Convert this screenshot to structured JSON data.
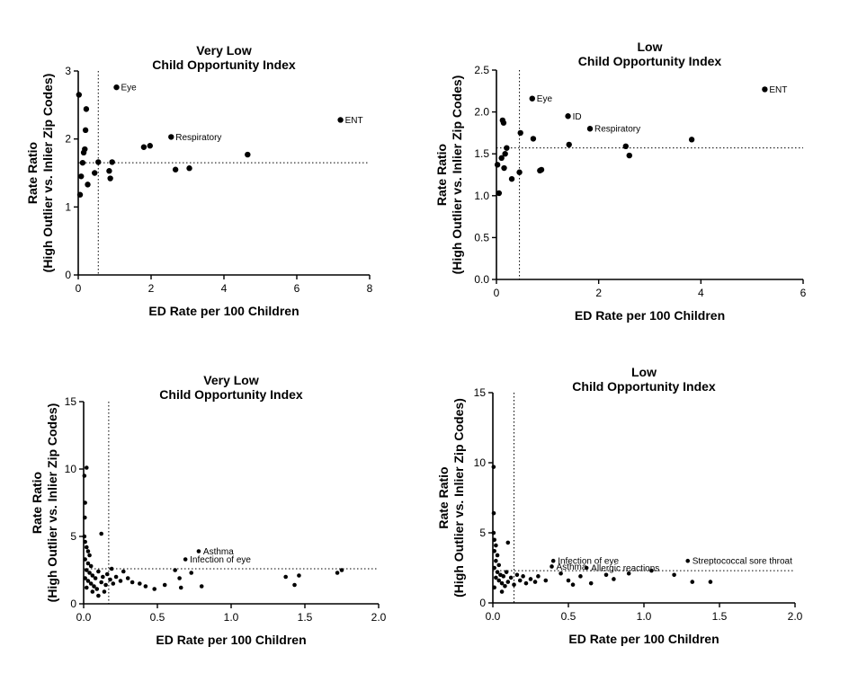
{
  "figure": {
    "background": "#ffffff",
    "point_color": "#000000"
  },
  "chart_data": [
    {
      "type": "scatter",
      "title_lines": [
        "Very Low",
        "Child Opportunity Index"
      ],
      "xlabel": "ED Rate per 100 Children",
      "ylabel_lines": [
        "Rate Ratio",
        "(High Outlier vs. Inlier Zip Codes)"
      ],
      "xlim": [
        0,
        8
      ],
      "ylim": [
        0,
        3
      ],
      "xticks": [
        0,
        2,
        4,
        6,
        8
      ],
      "yticks": [
        0,
        1,
        2,
        3
      ],
      "xtick_labels": [
        "0",
        "2",
        "4",
        "6",
        "8"
      ],
      "ytick_labels": [
        "0",
        "1",
        "2",
        "3"
      ],
      "reference_lines": {
        "x": 0.55,
        "y": 1.65
      },
      "points": [
        {
          "x": 0.02,
          "y": 2.65
        },
        {
          "x": 0.05,
          "y": 1.18
        },
        {
          "x": 0.08,
          "y": 1.45
        },
        {
          "x": 0.12,
          "y": 1.65
        },
        {
          "x": 0.15,
          "y": 1.8
        },
        {
          "x": 0.18,
          "y": 1.85
        },
        {
          "x": 0.2,
          "y": 2.13
        },
        {
          "x": 0.22,
          "y": 2.44
        },
        {
          "x": 0.26,
          "y": 1.33
        },
        {
          "x": 0.45,
          "y": 1.5
        },
        {
          "x": 0.55,
          "y": 1.66
        },
        {
          "x": 0.85,
          "y": 1.53
        },
        {
          "x": 0.88,
          "y": 1.42
        },
        {
          "x": 0.93,
          "y": 1.66
        },
        {
          "x": 1.05,
          "y": 2.76
        },
        {
          "x": 1.8,
          "y": 1.88
        },
        {
          "x": 1.97,
          "y": 1.9
        },
        {
          "x": 2.55,
          "y": 2.03
        },
        {
          "x": 2.67,
          "y": 1.55
        },
        {
          "x": 3.05,
          "y": 1.57
        },
        {
          "x": 4.65,
          "y": 1.77
        },
        {
          "x": 7.2,
          "y": 2.28
        }
      ],
      "annotations": [
        {
          "text": "Eye",
          "x": 1.05,
          "y": 2.76
        },
        {
          "text": "Respiratory",
          "x": 2.55,
          "y": 2.03
        },
        {
          "text": "ENT",
          "x": 7.2,
          "y": 2.28
        }
      ]
    },
    {
      "type": "scatter",
      "title_lines": [
        "Low",
        "Child Opportunity Index"
      ],
      "xlabel": "ED Rate per 100 Children",
      "ylabel_lines": [
        "Rate Ratio",
        "(High Outlier vs. Inlier Zip Codes)"
      ],
      "xlim": [
        0,
        6
      ],
      "ylim": [
        0,
        2.5
      ],
      "xticks": [
        0,
        2,
        4,
        6
      ],
      "yticks": [
        0,
        0.5,
        1,
        1.5,
        2,
        2.5
      ],
      "xtick_labels": [
        "0",
        "2",
        "4",
        "6"
      ],
      "ytick_labels": [
        "0.0",
        "0.5",
        "1.0",
        "1.5",
        "2.0",
        "2.5"
      ],
      "reference_lines": {
        "x": 0.45,
        "y": 1.57
      },
      "points": [
        {
          "x": 0.02,
          "y": 1.37
        },
        {
          "x": 0.05,
          "y": 1.03
        },
        {
          "x": 0.1,
          "y": 1.45
        },
        {
          "x": 0.12,
          "y": 1.9
        },
        {
          "x": 0.14,
          "y": 1.87
        },
        {
          "x": 0.15,
          "y": 1.33
        },
        {
          "x": 0.17,
          "y": 1.5
        },
        {
          "x": 0.2,
          "y": 1.57
        },
        {
          "x": 0.3,
          "y": 1.2
        },
        {
          "x": 0.45,
          "y": 1.28
        },
        {
          "x": 0.47,
          "y": 1.75
        },
        {
          "x": 0.7,
          "y": 2.16
        },
        {
          "x": 0.72,
          "y": 1.68
        },
        {
          "x": 0.85,
          "y": 1.3
        },
        {
          "x": 0.88,
          "y": 1.31
        },
        {
          "x": 1.4,
          "y": 1.95
        },
        {
          "x": 1.42,
          "y": 1.61
        },
        {
          "x": 1.83,
          "y": 1.8
        },
        {
          "x": 2.53,
          "y": 1.59
        },
        {
          "x": 2.6,
          "y": 1.48
        },
        {
          "x": 3.82,
          "y": 1.67
        },
        {
          "x": 5.25,
          "y": 2.27
        }
      ],
      "annotations": [
        {
          "text": "Eye",
          "x": 0.7,
          "y": 2.16
        },
        {
          "text": "ID",
          "x": 1.4,
          "y": 1.95
        },
        {
          "text": "Respiratory",
          "x": 1.83,
          "y": 1.8
        },
        {
          "text": "ENT",
          "x": 5.25,
          "y": 2.27
        }
      ]
    },
    {
      "type": "scatter",
      "title_lines": [
        "Very Low",
        "Child Opportunity Index"
      ],
      "xlabel": "ED Rate per 100 Children",
      "ylabel_lines": [
        "Rate Ratio",
        "(High Outlier vs. Inlier Zip Codes)"
      ],
      "xlim": [
        0,
        2.0
      ],
      "ylim": [
        0,
        15
      ],
      "xticks": [
        0,
        0.5,
        1,
        1.5,
        2
      ],
      "yticks": [
        0,
        5,
        10,
        15
      ],
      "xtick_labels": [
        "0.0",
        "0.5",
        "1.0",
        "1.5",
        "2.0"
      ],
      "ytick_labels": [
        "0",
        "5",
        "10",
        "15"
      ],
      "reference_lines": {
        "x": 0.17,
        "y": 2.6
      },
      "points": [
        {
          "x": 0.005,
          "y": 9.5
        },
        {
          "x": 0.02,
          "y": 10.1
        },
        {
          "x": 0.01,
          "y": 7.5
        },
        {
          "x": 0.008,
          "y": 6.4
        },
        {
          "x": 0.005,
          "y": 5.0
        },
        {
          "x": 0.01,
          "y": 4.6
        },
        {
          "x": 0.02,
          "y": 4.2
        },
        {
          "x": 0.03,
          "y": 3.9
        },
        {
          "x": 0.04,
          "y": 3.6
        },
        {
          "x": 0.01,
          "y": 3.3
        },
        {
          "x": 0.03,
          "y": 3.0
        },
        {
          "x": 0.05,
          "y": 2.8
        },
        {
          "x": 0.02,
          "y": 2.5
        },
        {
          "x": 0.04,
          "y": 2.3
        },
        {
          "x": 0.06,
          "y": 2.1
        },
        {
          "x": 0.01,
          "y": 1.9
        },
        {
          "x": 0.03,
          "y": 1.7
        },
        {
          "x": 0.05,
          "y": 1.5
        },
        {
          "x": 0.07,
          "y": 1.3
        },
        {
          "x": 0.09,
          "y": 1.1
        },
        {
          "x": 0.02,
          "y": 1.2
        },
        {
          "x": 0.08,
          "y": 1.9
        },
        {
          "x": 0.1,
          "y": 2.4
        },
        {
          "x": 0.12,
          "y": 1.6
        },
        {
          "x": 0.13,
          "y": 2.0
        },
        {
          "x": 0.14,
          "y": 0.9
        },
        {
          "x": 0.15,
          "y": 1.4
        },
        {
          "x": 0.16,
          "y": 2.2
        },
        {
          "x": 0.18,
          "y": 1.8
        },
        {
          "x": 0.19,
          "y": 2.6
        },
        {
          "x": 0.2,
          "y": 1.5
        },
        {
          "x": 0.22,
          "y": 2.0
        },
        {
          "x": 0.25,
          "y": 1.7
        },
        {
          "x": 0.27,
          "y": 2.4
        },
        {
          "x": 0.3,
          "y": 1.9
        },
        {
          "x": 0.33,
          "y": 1.6
        },
        {
          "x": 0.38,
          "y": 1.5
        },
        {
          "x": 0.42,
          "y": 1.3
        },
        {
          "x": 0.48,
          "y": 1.1
        },
        {
          "x": 0.55,
          "y": 1.4
        },
        {
          "x": 0.62,
          "y": 2.5
        },
        {
          "x": 0.65,
          "y": 1.9
        },
        {
          "x": 0.66,
          "y": 1.2
        },
        {
          "x": 0.69,
          "y": 3.3
        },
        {
          "x": 0.73,
          "y": 2.3
        },
        {
          "x": 0.78,
          "y": 3.9
        },
        {
          "x": 0.8,
          "y": 1.3
        },
        {
          "x": 1.37,
          "y": 2.0
        },
        {
          "x": 1.43,
          "y": 1.4
        },
        {
          "x": 1.46,
          "y": 2.1
        },
        {
          "x": 1.72,
          "y": 2.3
        },
        {
          "x": 1.75,
          "y": 2.5
        },
        {
          "x": 0.12,
          "y": 5.2
        },
        {
          "x": 0.1,
          "y": 0.6
        },
        {
          "x": 0.06,
          "y": 0.9
        }
      ],
      "annotations": [
        {
          "text": "Asthma",
          "x": 0.78,
          "y": 3.9
        },
        {
          "text": "Infection of eye",
          "x": 0.69,
          "y": 3.3
        }
      ]
    },
    {
      "type": "scatter",
      "title_lines": [
        "Low",
        "Child Opportunity Index"
      ],
      "xlabel": "ED Rate per 100 Children",
      "ylabel_lines": [
        "Rate Ratio",
        "(High Outlier vs. Inlier Zip Codes)"
      ],
      "xlim": [
        0,
        2.0
      ],
      "ylim": [
        0,
        15
      ],
      "xticks": [
        0,
        0.5,
        1,
        1.5,
        2
      ],
      "yticks": [
        0,
        5,
        10,
        15
      ],
      "xtick_labels": [
        "0.0",
        "0.5",
        "1.0",
        "1.5",
        "2.0"
      ],
      "ytick_labels": [
        "0",
        "5",
        "10",
        "15"
      ],
      "reference_lines": {
        "x": 0.14,
        "y": 2.3
      },
      "points": [
        {
          "x": 0.005,
          "y": 9.7
        },
        {
          "x": 0.006,
          "y": 6.4
        },
        {
          "x": 0.005,
          "y": 5.0
        },
        {
          "x": 0.01,
          "y": 4.5
        },
        {
          "x": 0.02,
          "y": 4.1
        },
        {
          "x": 0.01,
          "y": 3.7
        },
        {
          "x": 0.03,
          "y": 3.4
        },
        {
          "x": 0.02,
          "y": 3.0
        },
        {
          "x": 0.04,
          "y": 2.7
        },
        {
          "x": 0.01,
          "y": 2.5
        },
        {
          "x": 0.03,
          "y": 2.2
        },
        {
          "x": 0.05,
          "y": 2.0
        },
        {
          "x": 0.02,
          "y": 1.8
        },
        {
          "x": 0.04,
          "y": 1.6
        },
        {
          "x": 0.06,
          "y": 1.4
        },
        {
          "x": 0.08,
          "y": 1.2
        },
        {
          "x": 0.01,
          "y": 1.1
        },
        {
          "x": 0.07,
          "y": 1.9
        },
        {
          "x": 0.09,
          "y": 2.2
        },
        {
          "x": 0.1,
          "y": 1.5
        },
        {
          "x": 0.12,
          "y": 1.8
        },
        {
          "x": 0.14,
          "y": 1.3
        },
        {
          "x": 0.16,
          "y": 2.0
        },
        {
          "x": 0.18,
          "y": 1.6
        },
        {
          "x": 0.2,
          "y": 1.9
        },
        {
          "x": 0.22,
          "y": 1.4
        },
        {
          "x": 0.25,
          "y": 1.7
        },
        {
          "x": 0.28,
          "y": 1.5
        },
        {
          "x": 0.3,
          "y": 1.9
        },
        {
          "x": 0.35,
          "y": 1.6
        },
        {
          "x": 0.39,
          "y": 2.6
        },
        {
          "x": 0.4,
          "y": 3.0
        },
        {
          "x": 0.45,
          "y": 2.1
        },
        {
          "x": 0.5,
          "y": 1.6
        },
        {
          "x": 0.53,
          "y": 1.3
        },
        {
          "x": 0.58,
          "y": 1.9
        },
        {
          "x": 0.62,
          "y": 2.5
        },
        {
          "x": 0.65,
          "y": 1.4
        },
        {
          "x": 0.75,
          "y": 2.0
        },
        {
          "x": 0.8,
          "y": 1.7
        },
        {
          "x": 0.9,
          "y": 2.1
        },
        {
          "x": 1.05,
          "y": 2.3
        },
        {
          "x": 1.2,
          "y": 2.0
        },
        {
          "x": 1.29,
          "y": 3.0
        },
        {
          "x": 1.32,
          "y": 1.5
        },
        {
          "x": 1.44,
          "y": 1.5
        },
        {
          "x": 0.1,
          "y": 4.3
        },
        {
          "x": 0.06,
          "y": 0.8
        }
      ],
      "annotations": [
        {
          "text": "Infection of eye",
          "x": 0.4,
          "y": 3.0
        },
        {
          "text": "Asthma",
          "x": 0.39,
          "y": 2.6
        },
        {
          "text": "Allergic reactions",
          "x": 0.62,
          "y": 2.5
        },
        {
          "text": "Streptococcal sore throat",
          "x": 1.29,
          "y": 3.0
        }
      ]
    }
  ]
}
